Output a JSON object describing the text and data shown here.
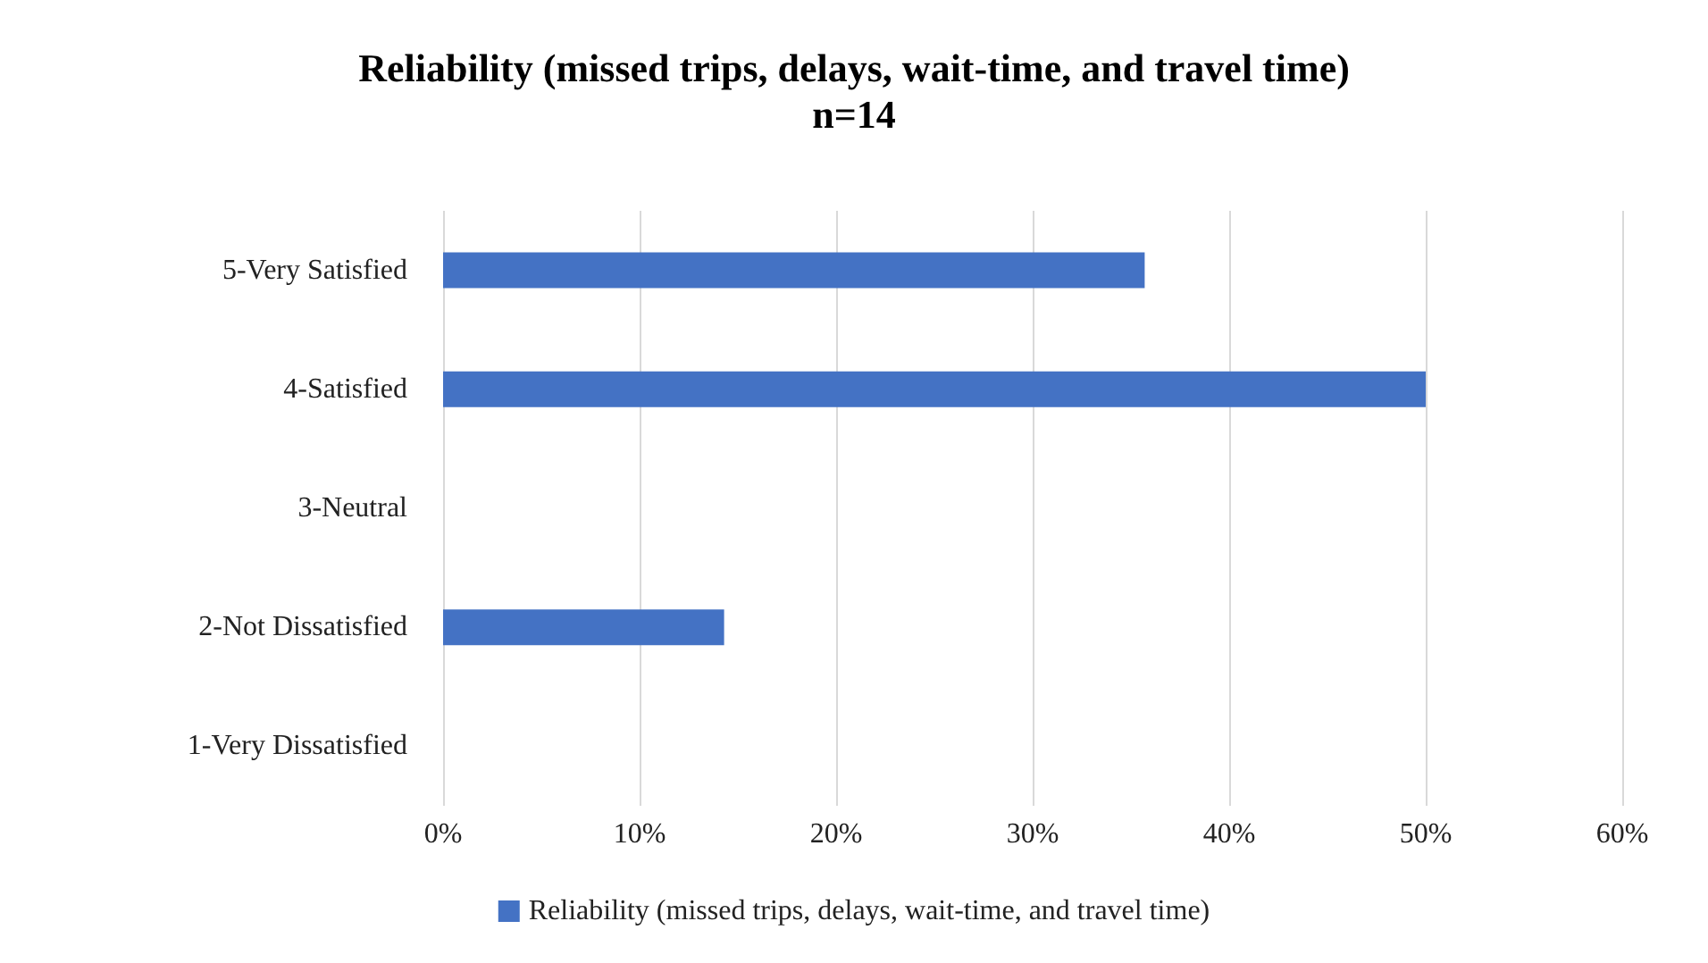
{
  "chart_data": {
    "type": "bar",
    "orientation": "horizontal",
    "title": "Reliability (missed trips, delays, wait-time, and travel time)",
    "subtitle": "n=14",
    "categories": [
      "5-Very Satisfied",
      "4-Satisfied",
      "3-Neutral",
      "2-Not Dissatisfied",
      "1-Very Dissatisfied"
    ],
    "series": [
      {
        "name": "Reliability (missed trips, delays, wait-time, and travel time)",
        "color": "#4472c4",
        "values": [
          35.7,
          50,
          0,
          14.3,
          0
        ]
      }
    ],
    "xlim": [
      0,
      60
    ],
    "xticks": [
      {
        "value": 0,
        "label": "0%"
      },
      {
        "value": 10,
        "label": "10%"
      },
      {
        "value": 20,
        "label": "20%"
      },
      {
        "value": 30,
        "label": "30%"
      },
      {
        "value": 40,
        "label": "40%"
      },
      {
        "value": 50,
        "label": "50%"
      },
      {
        "value": 60,
        "label": "60%"
      }
    ],
    "grid": "x",
    "legend": "bottom"
  }
}
